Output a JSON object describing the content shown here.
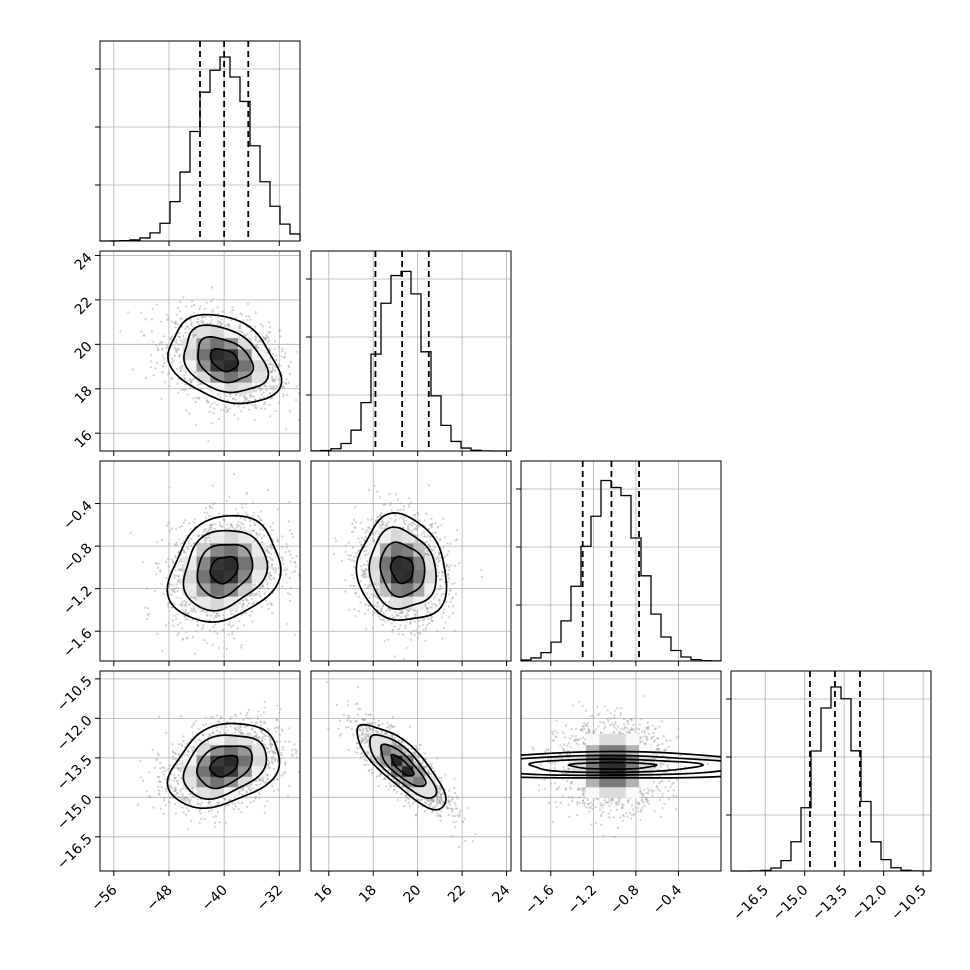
{
  "chart_data": {
    "type": "corner",
    "grid": true,
    "colors": {
      "samples": "#9a9a9a",
      "density": "#000000",
      "lines": "#000000",
      "grid": "#b0b0b0"
    },
    "parameters": [
      {
        "id": "p0",
        "range": [
          -58,
          -29
        ],
        "ticks": [
          -56,
          -48,
          -40,
          -32
        ],
        "tick_labels": [
          "−56",
          "−48",
          "−40",
          "−32"
        ],
        "mean": -40.0,
        "sd": 4.0,
        "quantiles": [
          -43.5,
          -40.0,
          -36.5
        ]
      },
      {
        "id": "p1",
        "range": [
          15.2,
          24.2
        ],
        "ticks": [
          16,
          18,
          20,
          22,
          24
        ],
        "tick_labels": [
          "16",
          "18",
          "20",
          "22",
          "24"
        ],
        "mean": 19.3,
        "sd": 1.0,
        "quantiles": [
          18.1,
          19.3,
          20.5
        ]
      },
      {
        "id": "p2",
        "range": [
          -1.88,
          0.0
        ],
        "ticks": [
          -1.6,
          -1.2,
          -0.8,
          -0.4
        ],
        "tick_labels": [
          "−1.6",
          "−1.2",
          "−0.8",
          "−0.4"
        ],
        "mean": -1.02,
        "sd": 0.25,
        "quantiles": [
          -1.3,
          -1.03,
          -0.77
        ]
      },
      {
        "id": "p3",
        "range": [
          -17.8,
          -10.2
        ],
        "ticks": [
          -16.5,
          -15.0,
          -13.5,
          -12.0,
          -10.5
        ],
        "tick_labels": [
          "−16.5",
          "−15.0",
          "−13.5",
          "−12.0",
          "−10.5"
        ],
        "mean": -13.8,
        "sd": 0.8,
        "quantiles": [
          -14.8,
          -13.85,
          -12.9
        ]
      }
    ],
    "correlations": [
      [
        1,
        -0.3,
        0.2,
        0.3
      ],
      [
        -0.3,
        1,
        -0.1,
        -0.8
      ],
      [
        0.2,
        -0.1,
        1,
        0.0
      ],
      [
        0.3,
        -0.8,
        0.0,
        1
      ]
    ],
    "contour_levels_sigma": [
      0.5,
      1.0,
      1.5,
      2.0
    ],
    "diagonal_histogram": {
      "bins": 20
    }
  }
}
